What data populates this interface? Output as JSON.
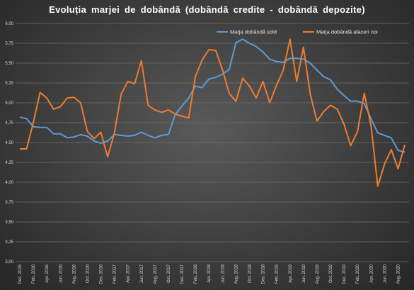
{
  "chart_data": {
    "type": "line",
    "title": "Evoluția marjei de dobândă (dobândă credite - dobândă depozite)",
    "xlabel": "",
    "ylabel": "",
    "ylim": [
      3.0,
      6.0
    ],
    "yticks": [
      "3,00",
      "3,25",
      "3,50",
      "3,75",
      "4,00",
      "4,25",
      "4,50",
      "4,75",
      "5,00",
      "5,25",
      "5,50",
      "5,75",
      "6,00"
    ],
    "xticks": [
      "Dec. 2015",
      "Feb. 2016",
      "Apr. 2016",
      "Jun. 2016",
      "Aug. 2016",
      "Oct. 2016",
      "Dec. 2016",
      "Feb. 2017",
      "Apr. 2017",
      "Jun. 2017",
      "Aug. 2017",
      "Oct. 2017",
      "Dec. 2017",
      "Feb. 2018",
      "Apr. 2018",
      "Jun. 2018",
      "Aug. 2018",
      "Oct. 2018",
      "Dec. 2018",
      "Feb. 2019",
      "Apr. 2019",
      "Jun. 2019",
      "Aug. 2019",
      "Oct. 2019",
      "Dec. 2019",
      "Feb. 2020",
      "Apr. 2020",
      "Jun. 2020",
      "Aug. 2020"
    ],
    "grid": true,
    "legend_position": "top-right",
    "series": [
      {
        "name": "Marja dobândă sold",
        "color": "#5b9bd5",
        "values": [
          4.82,
          4.8,
          4.7,
          4.69,
          4.69,
          4.61,
          4.61,
          4.56,
          4.57,
          4.6,
          4.58,
          4.52,
          4.49,
          4.52,
          4.6,
          4.59,
          4.58,
          4.59,
          4.63,
          4.59,
          4.56,
          4.59,
          4.6,
          4.85,
          4.96,
          5.06,
          5.21,
          5.19,
          5.3,
          5.32,
          5.36,
          5.42,
          5.76,
          5.8,
          5.75,
          5.71,
          5.64,
          5.55,
          5.52,
          5.51,
          5.56,
          5.56,
          5.55,
          5.5,
          5.41,
          5.33,
          5.29,
          5.17,
          5.09,
          5.02,
          5.02,
          4.99,
          4.8,
          4.62,
          4.59,
          4.56,
          4.4,
          4.38
        ]
      },
      {
        "name": "Marja dobândă afaceri noi",
        "color": "#ed7d31",
        "values": [
          4.42,
          4.42,
          4.75,
          5.13,
          5.06,
          4.92,
          4.95,
          5.06,
          5.07,
          5.0,
          4.64,
          4.55,
          4.63,
          4.32,
          4.62,
          5.11,
          5.27,
          5.24,
          5.53,
          4.97,
          4.91,
          4.88,
          4.91,
          4.86,
          4.83,
          4.81,
          5.33,
          5.54,
          5.67,
          5.66,
          5.42,
          5.12,
          5.02,
          5.31,
          5.21,
          5.06,
          5.27,
          5.0,
          5.22,
          5.41,
          5.8,
          5.27,
          5.7,
          5.11,
          4.77,
          4.89,
          4.97,
          4.92,
          4.73,
          4.46,
          4.64,
          5.12,
          4.71,
          3.95,
          4.23,
          4.41,
          4.17,
          4.47
        ]
      }
    ]
  }
}
